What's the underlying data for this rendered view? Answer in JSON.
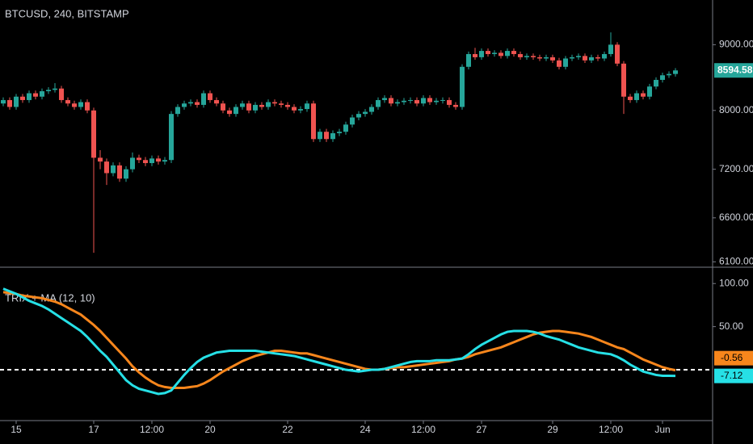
{
  "chart_data": [
    {
      "type": "candlestick",
      "title": "BTCUSD, 240, BITSTAMP",
      "log_scale": true,
      "up_color": "#26a69a",
      "down_color": "#ef5350",
      "categories": [
        null,
        null,
        "15",
        null,
        null,
        null,
        null,
        null,
        null,
        null,
        null,
        null,
        null,
        null,
        "17",
        null,
        null,
        null,
        null,
        null,
        null,
        null,
        null,
        "12:00",
        null,
        null,
        null,
        null,
        null,
        null,
        null,
        null,
        "20",
        null,
        null,
        null,
        null,
        null,
        null,
        null,
        null,
        null,
        null,
        null,
        "22",
        null,
        null,
        null,
        null,
        null,
        null,
        null,
        null,
        null,
        null,
        null,
        "24",
        null,
        null,
        null,
        null,
        null,
        null,
        null,
        null,
        "12:00",
        null,
        null,
        null,
        null,
        null,
        null,
        null,
        null,
        "27",
        null,
        null,
        null,
        null,
        null,
        null,
        null,
        null,
        null,
        null,
        "29",
        null,
        null,
        null,
        null,
        null,
        null,
        null,
        null,
        "12:00",
        null,
        null,
        null,
        null,
        null,
        null,
        null,
        "Jun",
        null,
        null
      ],
      "open": [
        8100,
        8150,
        8050,
        8200,
        8150,
        8250,
        8200,
        8280,
        8300,
        8320,
        8150,
        8100,
        8050,
        8120,
        8000,
        7350,
        7300,
        7150,
        7250,
        7080,
        7200,
        7350,
        7320,
        7280,
        7340,
        7300,
        7320,
        7950,
        8050,
        8100,
        8120,
        8080,
        8250,
        8150,
        8100,
        8000,
        7950,
        8050,
        8100,
        8000,
        8080,
        8050,
        8120,
        8100,
        8080,
        8050,
        8000,
        8020,
        8100,
        7600,
        7700,
        7600,
        7680,
        7700,
        7800,
        7900,
        7950,
        7980,
        8050,
        8150,
        8180,
        8100,
        8120,
        8140,
        8150,
        8100,
        8180,
        8120,
        8140,
        8150,
        8080,
        8050,
        8650,
        8850,
        8800,
        8900,
        8850,
        8870,
        8820,
        8900,
        8850,
        8800,
        8820,
        8800,
        8780,
        8800,
        8750,
        8650,
        8780,
        8800,
        8820,
        8750,
        8800,
        8780,
        8850,
        9000,
        8700,
        8200,
        8150,
        8250,
        8200,
        8350,
        8450,
        8520,
        8540
      ],
      "high": [
        8190,
        8190,
        8240,
        8240,
        8290,
        8290,
        8320,
        8340,
        8400,
        8360,
        8190,
        8140,
        8160,
        8160,
        8040,
        7450,
        7340,
        7290,
        7290,
        7240,
        7420,
        7390,
        7360,
        7380,
        7380,
        7360,
        7990,
        8090,
        8140,
        8160,
        8160,
        8290,
        8290,
        8190,
        8140,
        8040,
        8090,
        8140,
        8140,
        8120,
        8120,
        8160,
        8160,
        8140,
        8120,
        8090,
        8060,
        8140,
        8140,
        7740,
        7740,
        7720,
        7740,
        7840,
        7940,
        7990,
        8020,
        8090,
        8190,
        8220,
        8220,
        8160,
        8180,
        8190,
        8190,
        8220,
        8220,
        8180,
        8190,
        8190,
        8120,
        8690,
        8890,
        8950,
        8940,
        8940,
        8910,
        8910,
        8940,
        8940,
        8890,
        8860,
        8860,
        8840,
        8840,
        8840,
        8790,
        8820,
        8840,
        8860,
        8860,
        8840,
        8840,
        8890,
        9200,
        9040,
        8740,
        8240,
        8290,
        8290,
        8390,
        8490,
        8560,
        8580,
        8630
      ],
      "low": [
        8060,
        8010,
        8010,
        8110,
        8110,
        8160,
        8160,
        8240,
        8260,
        8110,
        8060,
        8010,
        8010,
        7960,
        6200,
        7200,
        7000,
        7110,
        7040,
        7040,
        7160,
        7280,
        7240,
        7240,
        7260,
        7260,
        7280,
        7910,
        8010,
        8060,
        8040,
        8040,
        8110,
        8060,
        7960,
        7910,
        7910,
        8010,
        7960,
        7960,
        8010,
        8010,
        8060,
        8040,
        8010,
        7960,
        7960,
        7980,
        7560,
        7560,
        7560,
        7560,
        7640,
        7660,
        7760,
        7860,
        7910,
        7940,
        8010,
        8110,
        8060,
        8060,
        8080,
        8100,
        8060,
        8060,
        8080,
        8080,
        8100,
        8040,
        8010,
        8010,
        8610,
        8760,
        8760,
        8810,
        8810,
        8780,
        8780,
        8810,
        8760,
        8760,
        8760,
        8740,
        8740,
        8710,
        8610,
        8610,
        8740,
        8760,
        8710,
        8710,
        8740,
        8740,
        8810,
        8660,
        7950,
        8110,
        8110,
        8160,
        8160,
        8310,
        8410,
        8480,
        8500
      ],
      "close": [
        8150,
        8050,
        8200,
        8150,
        8250,
        8200,
        8280,
        8300,
        8320,
        8150,
        8100,
        8050,
        8120,
        8000,
        7350,
        7300,
        7150,
        7250,
        7080,
        7200,
        7350,
        7320,
        7280,
        7340,
        7300,
        7320,
        7950,
        8050,
        8100,
        8120,
        8080,
        8250,
        8150,
        8100,
        8000,
        7950,
        8050,
        8100,
        8000,
        8080,
        8050,
        8120,
        8100,
        8080,
        8050,
        8000,
        8020,
        8100,
        7600,
        7700,
        7600,
        7680,
        7700,
        7800,
        7900,
        7950,
        7980,
        8050,
        8150,
        8180,
        8100,
        8120,
        8140,
        8150,
        8100,
        8180,
        8120,
        8140,
        8150,
        8080,
        8050,
        8650,
        8850,
        8800,
        8900,
        8850,
        8870,
        8820,
        8900,
        8850,
        8800,
        8820,
        8800,
        8780,
        8800,
        8750,
        8650,
        8780,
        8800,
        8820,
        8750,
        8800,
        8780,
        8850,
        9000,
        8700,
        8200,
        8150,
        8250,
        8200,
        8350,
        8450,
        8520,
        8540,
        8594.58
      ],
      "ylim": [
        6050,
        9750
      ],
      "yticks": [
        {
          "value": 6100,
          "label": "6100.00"
        },
        {
          "value": 6600,
          "label": "6600.00"
        },
        {
          "value": 7200,
          "label": "7200.00"
        },
        {
          "value": 8000,
          "label": "8000.00"
        },
        {
          "value": 9000,
          "label": "9000.00"
        }
      ]
    },
    {
      "type": "line",
      "title": "TRIX + MA (12, 10)",
      "hline": 0,
      "series": [
        {
          "color": "#26e0e6",
          "values": [
            94,
            91,
            88,
            84,
            80,
            77,
            74,
            70,
            65,
            60,
            55,
            50,
            45,
            38,
            30,
            22,
            15,
            6,
            -3,
            -12,
            -18,
            -22,
            -24,
            -26,
            -28,
            -27,
            -24,
            -15,
            -6,
            2,
            9,
            14,
            17,
            20,
            21,
            22,
            22,
            22,
            22,
            22,
            21,
            20,
            19,
            18,
            17,
            16,
            14,
            12,
            10,
            8,
            6,
            4,
            2,
            0,
            -1,
            -2,
            -1,
            0,
            0,
            1,
            3,
            5,
            7,
            9,
            10,
            10,
            10,
            11,
            11,
            11,
            12,
            13,
            18,
            24,
            29,
            33,
            37,
            41,
            44,
            45,
            45,
            45,
            44,
            42,
            39,
            37,
            35,
            32,
            29,
            26,
            24,
            22,
            20,
            19,
            18,
            15,
            11,
            6,
            2,
            -2,
            -4,
            -6,
            -7,
            -7,
            -7.12
          ]
        },
        {
          "color": "#f7861c",
          "values": [
            90,
            89,
            88,
            86,
            85,
            84,
            83,
            81,
            79,
            76,
            72,
            68,
            64,
            58,
            52,
            45,
            37,
            29,
            21,
            13,
            4,
            -3,
            -9,
            -14,
            -18,
            -20,
            -21,
            -21,
            -21,
            -20,
            -19,
            -16,
            -12,
            -7,
            -2,
            2,
            6,
            10,
            13,
            16,
            18,
            20,
            22,
            22,
            21,
            20,
            19,
            19,
            17,
            15,
            13,
            11,
            9,
            7,
            5,
            3,
            1,
            0,
            0,
            1,
            2,
            3,
            3,
            4,
            5,
            6,
            7,
            8,
            9,
            10,
            12,
            13,
            15,
            18,
            20,
            22,
            24,
            26,
            29,
            32,
            35,
            38,
            41,
            43,
            44,
            45,
            45,
            44,
            43,
            42,
            40,
            38,
            35,
            32,
            29,
            26,
            24,
            20,
            16,
            12,
            9,
            6,
            3,
            1,
            -0.56
          ]
        }
      ],
      "ylim": [
        -58,
        118
      ],
      "yticks": [
        {
          "value": 50,
          "label": "50.00"
        },
        {
          "value": 100,
          "label": "100.00"
        }
      ]
    }
  ]
}
